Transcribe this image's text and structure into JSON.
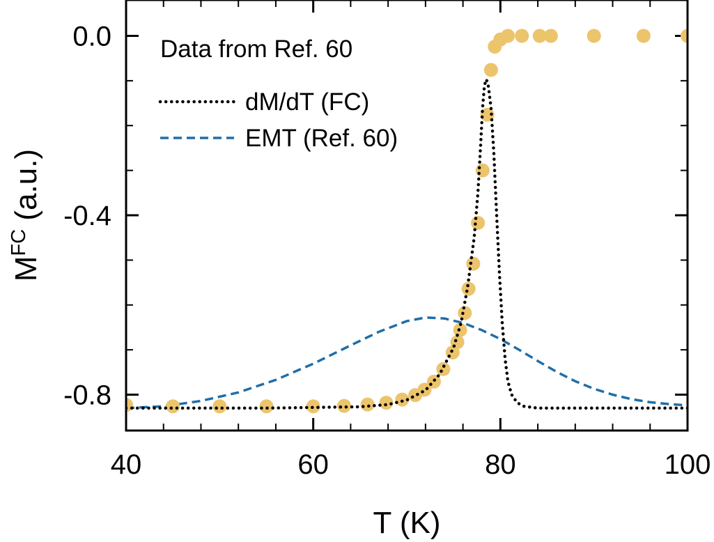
{
  "chart_data": {
    "type": "line",
    "xlabel": "T (K)",
    "ylabel_main": "M",
    "ylabel_super": "FC",
    "ylabel_units": " (a.u.)",
    "xlim": [
      40,
      100
    ],
    "ylim": [
      -0.88,
      0.08
    ],
    "x_ticks": [
      40,
      60,
      80,
      100
    ],
    "x_tick_labels": [
      "40",
      "60",
      "80",
      "100"
    ],
    "x_minor_step": 4,
    "y_ticks": [
      0.0,
      -0.4,
      -0.8
    ],
    "y_tick_labels": [
      "0.0",
      "-0.4",
      "-0.8"
    ],
    "y_minor_step": 0.1,
    "grid": false,
    "annotation": "Data from Ref. 60",
    "legend_position": "top-left",
    "series": [
      {
        "name": "Data from Ref. 60",
        "kind": "scatter",
        "color": "#ecc46c",
        "x": [
          40.0,
          45.0,
          50.0,
          55.0,
          60.0,
          63.3,
          65.8,
          67.8,
          69.5,
          70.9,
          71.9,
          72.9,
          73.9,
          74.9,
          75.4,
          75.7,
          76.2,
          76.6,
          77.1,
          77.6,
          78.1,
          78.6,
          79.0,
          79.4,
          80.0,
          80.8,
          82.3,
          84.2,
          85.4,
          90.0,
          95.3,
          100.0
        ],
        "y": [
          -0.823,
          -0.826,
          -0.826,
          -0.826,
          -0.826,
          -0.825,
          -0.822,
          -0.818,
          -0.811,
          -0.801,
          -0.789,
          -0.771,
          -0.743,
          -0.706,
          -0.683,
          -0.656,
          -0.618,
          -0.564,
          -0.508,
          -0.417,
          -0.3,
          -0.176,
          -0.076,
          -0.024,
          -0.008,
          0.0,
          0.0,
          0.0,
          0.0,
          0.0,
          0.0,
          0.0
        ]
      },
      {
        "name": "dM/dT (FC)",
        "kind": "dotted-line",
        "color": "#000000",
        "x": [
          40,
          55,
          65,
          68,
          70,
          72,
          73.5,
          75,
          75.8,
          76.5,
          77.2,
          77.6,
          77.9,
          78.1,
          78.3,
          78.5,
          78.7,
          79.0,
          79.3,
          79.6,
          79.9,
          80.2,
          80.5,
          80.8,
          81.2,
          81.8,
          82.5,
          84,
          100
        ],
        "y": [
          -0.83,
          -0.83,
          -0.827,
          -0.822,
          -0.812,
          -0.79,
          -0.755,
          -0.695,
          -0.64,
          -0.56,
          -0.45,
          -0.35,
          -0.24,
          -0.16,
          -0.11,
          -0.097,
          -0.11,
          -0.16,
          -0.26,
          -0.4,
          -0.53,
          -0.64,
          -0.72,
          -0.77,
          -0.8,
          -0.818,
          -0.826,
          -0.83,
          -0.83
        ]
      },
      {
        "name": "EMT (Ref. 60)",
        "kind": "dashed-line",
        "color": "#1f6ea8",
        "x": [
          40,
          44,
          48,
          52,
          56,
          60,
          64,
          67,
          70,
          72,
          74,
          76,
          78,
          80,
          82,
          84,
          86,
          88,
          90,
          92,
          94,
          96,
          98,
          100
        ],
        "y": [
          -0.83,
          -0.826,
          -0.814,
          -0.795,
          -0.767,
          -0.731,
          -0.69,
          -0.66,
          -0.636,
          -0.628,
          -0.63,
          -0.64,
          -0.656,
          -0.676,
          -0.7,
          -0.725,
          -0.749,
          -0.77,
          -0.787,
          -0.8,
          -0.81,
          -0.817,
          -0.821,
          -0.824
        ]
      }
    ]
  }
}
